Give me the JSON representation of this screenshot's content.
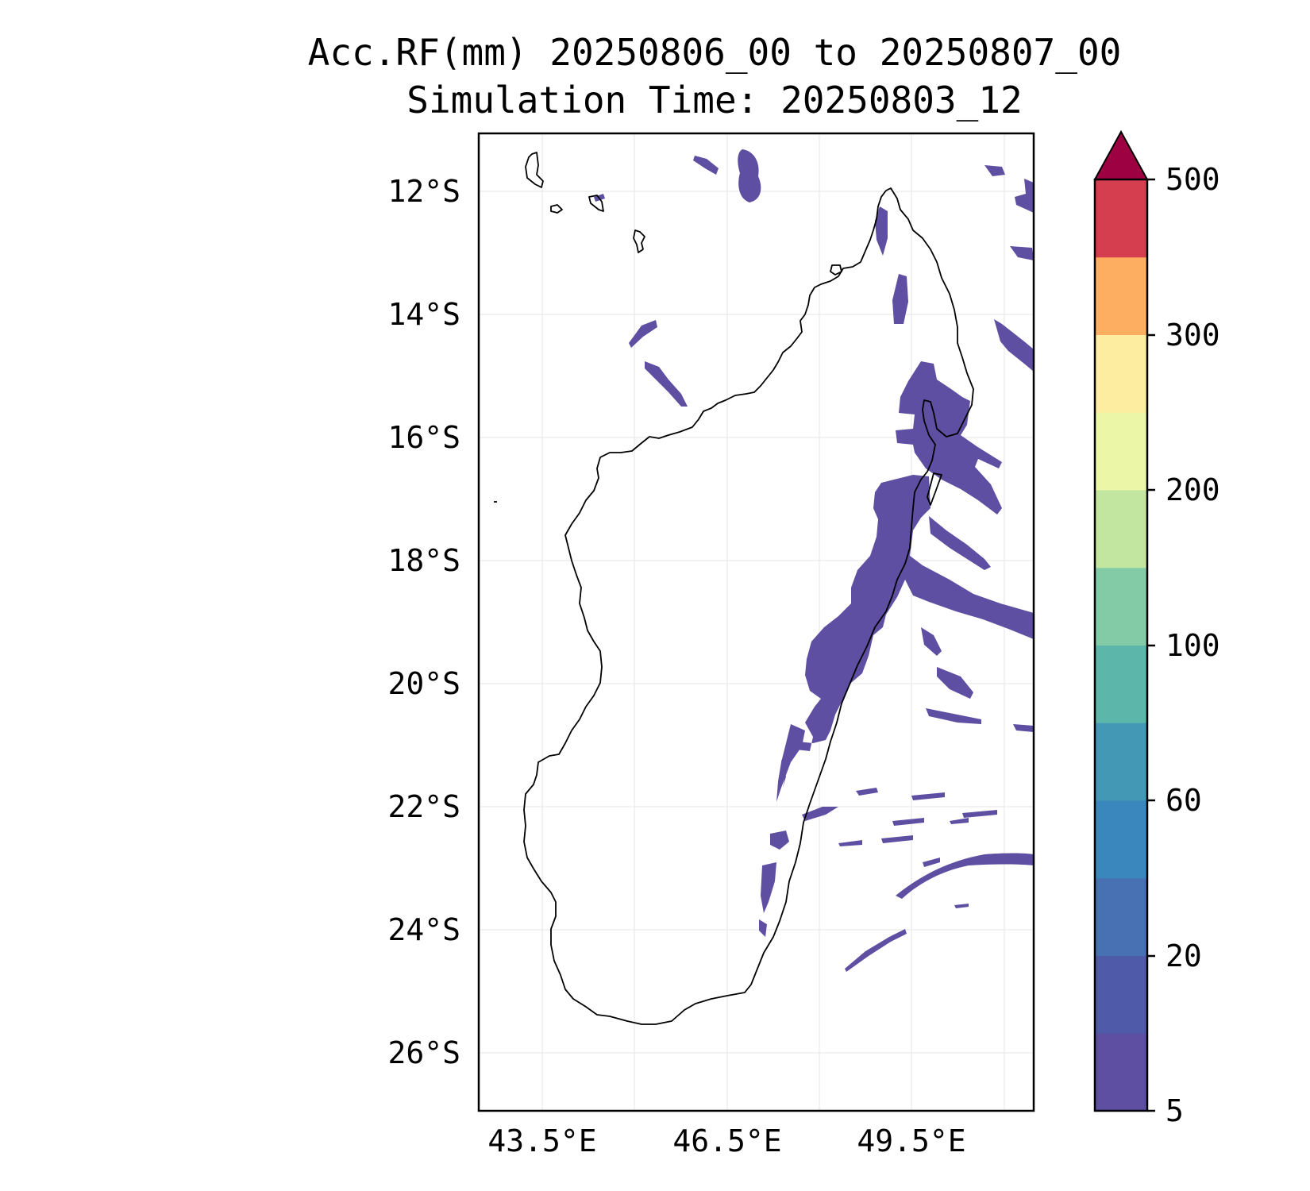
{
  "title": {
    "line1": "Acc.RF(mm) 20250806_00 to 20250807_00",
    "line2": "Simulation Time: 20250803_12"
  },
  "map": {
    "lon_ticks": [
      "43.5°E",
      "46.5°E",
      "49.5°E"
    ],
    "lat_ticks": [
      "12°S",
      "14°S",
      "16°S",
      "18°S",
      "20°S",
      "22°S",
      "24°S",
      "26°S"
    ],
    "extent": {
      "lon": [
        42.45,
        51.5
      ],
      "lat": [
        -26.9,
        -11.05
      ]
    },
    "gridlines": true,
    "feature": "Madagascar coastline",
    "precip_color": "#5e4fa2"
  },
  "colorbar": {
    "tick_labels": [
      "5",
      "20",
      "60",
      "100",
      "200",
      "300",
      "500"
    ],
    "extend": "max",
    "colors": [
      "#5e4fa2",
      "#4f5ba8",
      "#4771b2",
      "#3a87bd",
      "#4399b5",
      "#5cb7aa",
      "#82cba6",
      "#c2e59f",
      "#ebf7a6",
      "#fdeda0",
      "#fdae61",
      "#d53e4f",
      "#9e0142"
    ]
  }
}
